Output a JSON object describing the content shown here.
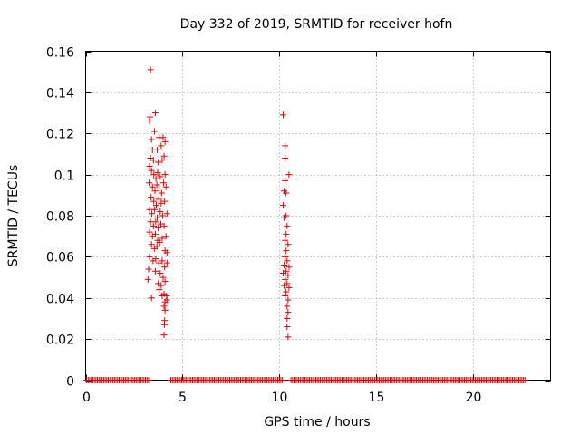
{
  "chart_data": {
    "type": "scatter",
    "title": "Day 332 of 2019, SRMTID for receiver hofn",
    "xlabel": "GPS time / hours",
    "ylabel": "SRMTID / TECUs",
    "xlim": [
      0,
      24
    ],
    "ylim": [
      0,
      0.16
    ],
    "xticks": [
      0,
      5,
      10,
      15,
      20
    ],
    "xtick_labels": [
      "0",
      "5",
      "10",
      "15",
      "20"
    ],
    "yticks": [
      0,
      0.02,
      0.04,
      0.06,
      0.08,
      0.1,
      0.12,
      0.14,
      0.16
    ],
    "ytick_labels": [
      "0",
      "0.02",
      "0.04",
      "0.06",
      "0.08",
      "0.1",
      "0.12",
      "0.14",
      "0.16"
    ],
    "grid": true,
    "marker": "+",
    "series_color": "#e00000",
    "series": [
      {
        "name": "SRMTID",
        "points": [
          [
            3.35,
            0.151
          ],
          [
            3.3,
            0.126
          ],
          [
            3.33,
            0.128
          ],
          [
            3.6,
            0.13
          ],
          [
            3.4,
            0.117
          ],
          [
            3.8,
            0.118
          ],
          [
            4.0,
            0.118
          ],
          [
            3.55,
            0.121
          ],
          [
            4.1,
            0.116
          ],
          [
            3.45,
            0.112
          ],
          [
            3.7,
            0.112
          ],
          [
            3.9,
            0.114
          ],
          [
            3.35,
            0.108
          ],
          [
            3.5,
            0.107
          ],
          [
            3.75,
            0.106
          ],
          [
            3.95,
            0.107
          ],
          [
            4.05,
            0.109
          ],
          [
            3.3,
            0.104
          ],
          [
            3.4,
            0.102
          ],
          [
            3.52,
            0.1
          ],
          [
            3.63,
            0.098
          ],
          [
            3.72,
            0.101
          ],
          [
            3.85,
            0.099
          ],
          [
            4.1,
            0.1
          ],
          [
            3.28,
            0.096
          ],
          [
            3.45,
            0.094
          ],
          [
            3.58,
            0.092
          ],
          [
            3.68,
            0.095
          ],
          [
            3.8,
            0.093
          ],
          [
            3.92,
            0.091
          ],
          [
            4.02,
            0.096
          ],
          [
            4.15,
            0.094
          ],
          [
            3.38,
            0.089
          ],
          [
            3.52,
            0.087
          ],
          [
            3.65,
            0.085
          ],
          [
            3.78,
            0.088
          ],
          [
            3.9,
            0.086
          ],
          [
            4.08,
            0.087
          ],
          [
            3.3,
            0.083
          ],
          [
            3.42,
            0.081
          ],
          [
            3.55,
            0.083
          ],
          [
            3.7,
            0.079
          ],
          [
            3.85,
            0.082
          ],
          [
            3.98,
            0.08
          ],
          [
            4.2,
            0.081
          ],
          [
            3.35,
            0.077
          ],
          [
            3.5,
            0.075
          ],
          [
            3.62,
            0.077
          ],
          [
            3.75,
            0.074
          ],
          [
            3.88,
            0.076
          ],
          [
            4.05,
            0.075
          ],
          [
            3.3,
            0.072
          ],
          [
            3.45,
            0.07
          ],
          [
            3.6,
            0.071
          ],
          [
            3.72,
            0.068
          ],
          [
            3.95,
            0.069
          ],
          [
            4.15,
            0.07
          ],
          [
            3.4,
            0.066
          ],
          [
            3.55,
            0.064
          ],
          [
            3.68,
            0.065
          ],
          [
            3.82,
            0.067
          ],
          [
            4.1,
            0.063
          ],
          [
            4.2,
            0.062
          ],
          [
            3.3,
            0.06
          ],
          [
            3.48,
            0.058
          ],
          [
            3.62,
            0.059
          ],
          [
            3.78,
            0.057
          ],
          [
            3.95,
            0.058
          ],
          [
            4.08,
            0.055
          ],
          [
            4.2,
            0.057
          ],
          [
            3.25,
            0.054
          ],
          [
            3.6,
            0.053
          ],
          [
            3.85,
            0.052
          ],
          [
            4.0,
            0.05
          ],
          [
            3.22,
            0.049
          ],
          [
            3.75,
            0.047
          ],
          [
            3.9,
            0.046
          ],
          [
            4.1,
            0.048
          ],
          [
            3.8,
            0.044
          ],
          [
            3.95,
            0.041
          ],
          [
            3.4,
            0.04
          ],
          [
            4.05,
            0.042
          ],
          [
            4.18,
            0.041
          ],
          [
            4.1,
            0.038
          ],
          [
            4.2,
            0.039
          ],
          [
            4.05,
            0.036
          ],
          [
            4.1,
            0.034
          ],
          [
            4.08,
            0.029
          ],
          [
            4.07,
            0.027
          ],
          [
            4.05,
            0.022
          ],
          [
            10.2,
            0.129
          ],
          [
            10.3,
            0.114
          ],
          [
            10.3,
            0.108
          ],
          [
            10.5,
            0.1
          ],
          [
            10.3,
            0.097
          ],
          [
            10.25,
            0.092
          ],
          [
            10.35,
            0.091
          ],
          [
            10.2,
            0.085
          ],
          [
            10.35,
            0.08
          ],
          [
            10.25,
            0.079
          ],
          [
            10.4,
            0.075
          ],
          [
            10.35,
            0.071
          ],
          [
            10.3,
            0.068
          ],
          [
            10.45,
            0.066
          ],
          [
            10.35,
            0.063
          ],
          [
            10.3,
            0.06
          ],
          [
            10.4,
            0.058
          ],
          [
            10.25,
            0.056
          ],
          [
            10.5,
            0.055
          ],
          [
            10.35,
            0.053
          ],
          [
            10.2,
            0.052
          ],
          [
            10.45,
            0.051
          ],
          [
            10.3,
            0.049
          ],
          [
            10.4,
            0.047
          ],
          [
            10.25,
            0.046
          ],
          [
            10.5,
            0.045
          ],
          [
            10.35,
            0.043
          ],
          [
            10.3,
            0.041
          ],
          [
            10.45,
            0.039
          ],
          [
            10.4,
            0.036
          ],
          [
            10.45,
            0.033
          ],
          [
            10.4,
            0.03
          ],
          [
            10.4,
            0.026
          ],
          [
            10.45,
            0.021
          ]
        ]
      }
    ],
    "baseline": {
      "note": "dense row of zero-valued points along the x axis",
      "y": 0,
      "x_ranges": [
        [
          0.05,
          3.3
        ],
        [
          4.4,
          10.2
        ],
        [
          10.6,
          22.7
        ]
      ],
      "step": 0.08
    }
  }
}
